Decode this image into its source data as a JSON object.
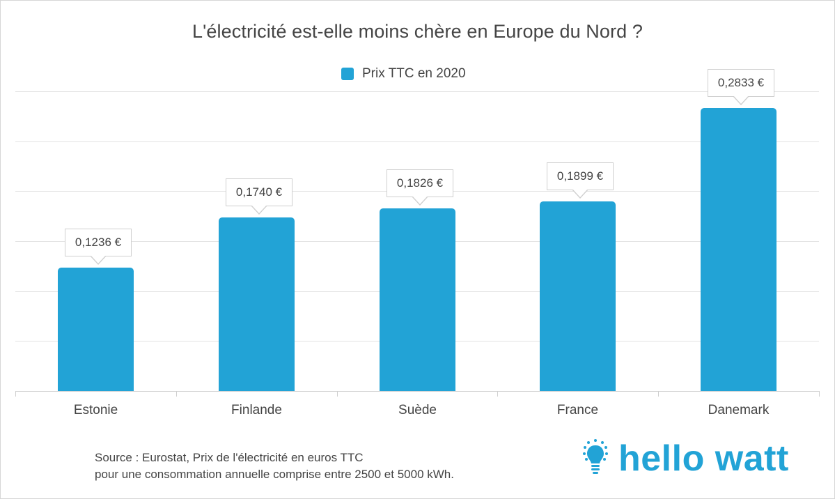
{
  "title": "L'électricité est-elle moins chère en Europe du Nord ?",
  "legend": {
    "label": "Prix TTC en 2020",
    "color": "#22a3d6"
  },
  "source": {
    "line1": "Source : Eurostat, Prix de l'électricité en euros TTC",
    "line2": "pour une consommation annuelle comprise entre 2500 et 5000 kWh."
  },
  "logo": {
    "text": "hello watt",
    "icon": "lightbulb-icon",
    "color": "#22a3d6"
  },
  "colors": {
    "bar": "#22a3d6",
    "grid": "#e3e3e3",
    "text": "#444444"
  },
  "labels": [
    "0,1236 €",
    "0,1740 €",
    "0,1826 €",
    "0,1899 €",
    "0,2833 €"
  ],
  "chart_data": {
    "type": "bar",
    "title": "L'électricité est-elle moins chère en Europe du Nord ?",
    "xlabel": "",
    "ylabel": "",
    "categories": [
      "Estonie",
      "Finlande",
      "Suède",
      "France",
      "Danemark"
    ],
    "series": [
      {
        "name": "Prix TTC en 2020",
        "values": [
          0.1236,
          0.174,
          0.1826,
          0.1899,
          0.2833
        ],
        "color": "#22a3d6"
      }
    ],
    "value_labels": [
      "0,1236 €",
      "0,1740 €",
      "0,1826 €",
      "0,1899 €",
      "0,2833 €"
    ],
    "unit": "€ / kWh",
    "ylim": [
      0,
      0.3
    ],
    "y_ticks_visible": false,
    "grid": true,
    "legend_position": "top"
  }
}
